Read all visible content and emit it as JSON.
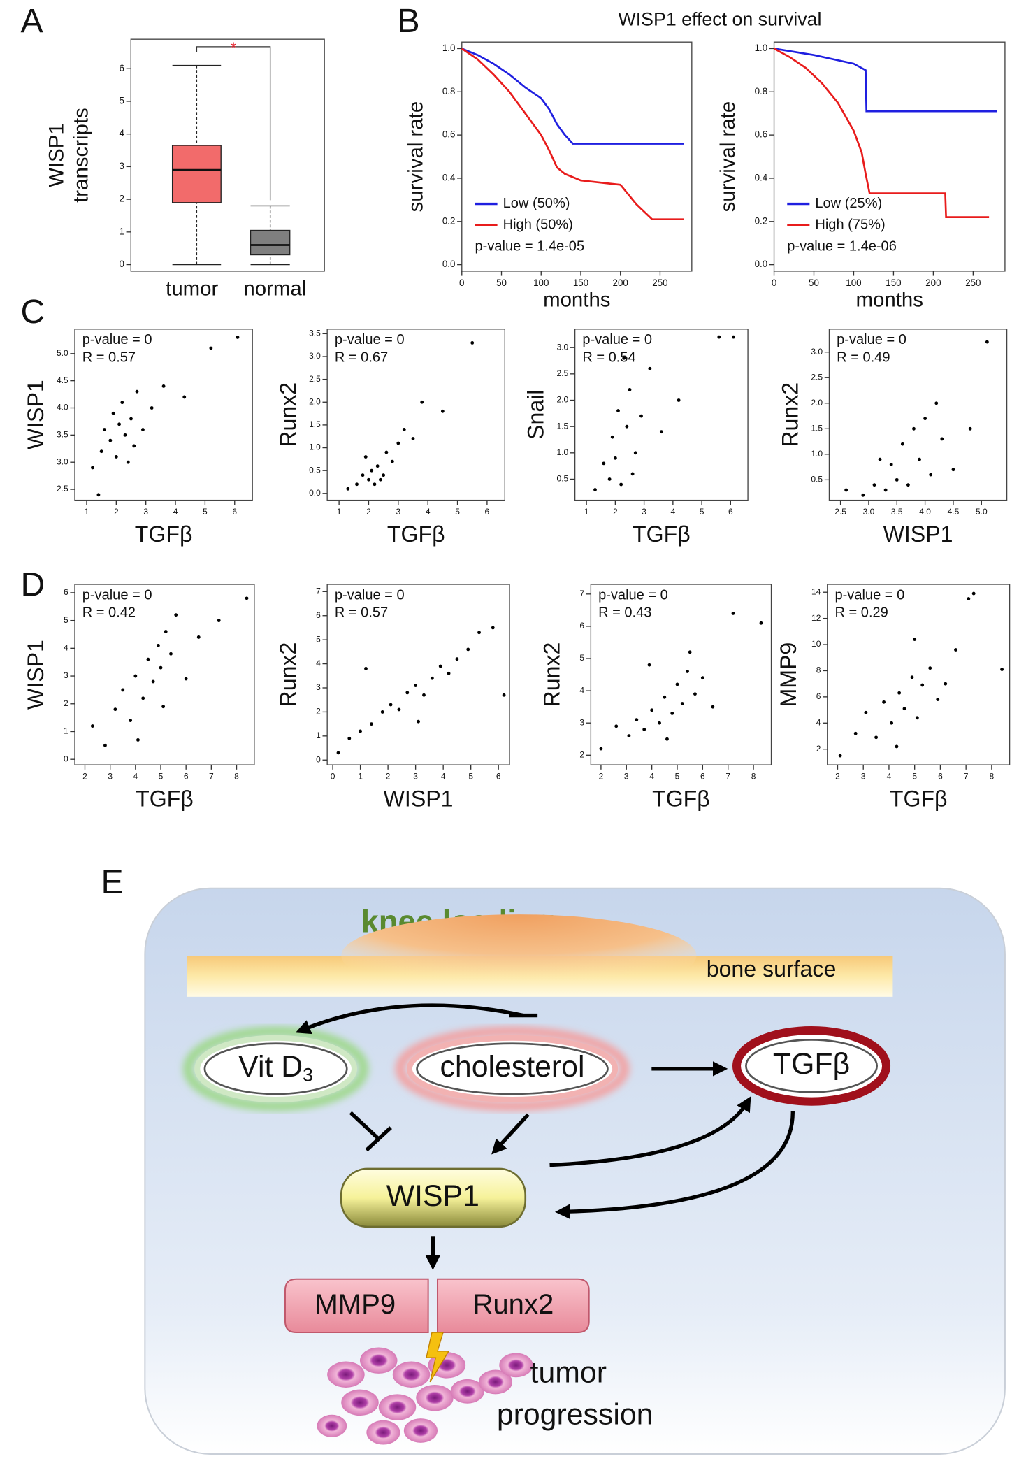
{
  "panel_labels": [
    "A",
    "B",
    "C",
    "D",
    "E"
  ],
  "chart_data": [
    {
      "type": "box",
      "ylabel": [
        "WISP1",
        "transcripts"
      ],
      "categories": [
        "tumor",
        "normal"
      ],
      "boxes": [
        {
          "whislo": 0,
          "q1": 1.9,
          "med": 2.9,
          "q3": 3.65,
          "whishi": 6.1
        },
        {
          "whislo": 0,
          "q1": 0.3,
          "med": 0.6,
          "q3": 1.05,
          "whishi": 1.8
        }
      ],
      "colors": [
        "#f26b6b",
        "#7f7f7f"
      ],
      "significance": "*",
      "significance_color": "#e8202a",
      "ylim": [
        -0.2,
        6.9
      ],
      "yticks": [
        0,
        1,
        2,
        3,
        4,
        5,
        6
      ]
    },
    {
      "type": "line",
      "title": "WISP1 effect on survival",
      "xlabel": "months",
      "ylabel": "survival rate",
      "annotation": "p-value = 1.4e-05",
      "xlim": [
        0,
        290
      ],
      "xticks": [
        0,
        50,
        100,
        150,
        200,
        250
      ],
      "ylim": [
        -0.03,
        1.03
      ],
      "yticks": [
        {
          "value": 0,
          "label": "0.0"
        },
        0.2,
        0.4,
        0.6,
        0.8,
        {
          "value": 1,
          "label": "1.0"
        }
      ],
      "series": [
        {
          "name": "Low (50%)",
          "color": "#1f1fe0",
          "x": [
            0,
            20,
            40,
            60,
            80,
            100,
            110,
            120,
            130,
            140,
            150,
            280
          ],
          "values": [
            1,
            0.97,
            0.93,
            0.88,
            0.82,
            0.77,
            0.72,
            0.65,
            0.6,
            0.56,
            0.56,
            0.56
          ]
        },
        {
          "name": "High (50%)",
          "color": "#e81c1c",
          "x": [
            0,
            20,
            40,
            60,
            80,
            100,
            110,
            120,
            130,
            150,
            200,
            220,
            240,
            280
          ],
          "values": [
            1,
            0.95,
            0.88,
            0.8,
            0.7,
            0.6,
            0.53,
            0.45,
            0.42,
            0.39,
            0.37,
            0.28,
            0.21,
            0.21
          ]
        }
      ]
    },
    {
      "type": "line",
      "xlabel": "months",
      "ylabel": "survival rate",
      "annotation": "p-value = 1.4e-06",
      "xlim": [
        0,
        290
      ],
      "xticks": [
        0,
        50,
        100,
        150,
        200,
        250
      ],
      "ylim": [
        -0.03,
        1.03
      ],
      "yticks": [
        {
          "value": 0,
          "label": "0.0"
        },
        0.2,
        0.4,
        0.6,
        0.8,
        {
          "value": 1,
          "label": "1.0"
        }
      ],
      "series": [
        {
          "name": "Low (25%)",
          "color": "#1f1fe0",
          "x": [
            0,
            50,
            100,
            115,
            116,
            280
          ],
          "values": [
            1,
            0.97,
            0.93,
            0.9,
            0.71,
            0.71
          ]
        },
        {
          "name": "High (75%)",
          "color": "#e81c1c",
          "x": [
            0,
            20,
            40,
            60,
            80,
            100,
            110,
            115,
            120,
            150,
            200,
            215,
            216,
            270
          ],
          "values": [
            1,
            0.96,
            0.91,
            0.84,
            0.75,
            0.62,
            0.52,
            0.42,
            0.33,
            0.33,
            0.33,
            0.33,
            0.22,
            0.22
          ]
        }
      ]
    },
    {
      "type": "scatter",
      "xlabel": "TGFβ",
      "ylabel": "WISP1",
      "annotations": [
        "p-value = 0",
        "R = 0.57"
      ],
      "xlim": [
        0.6,
        6.6
      ],
      "xticks": [
        1,
        2,
        3,
        4,
        5,
        6
      ],
      "ylim": [
        2.3,
        5.45
      ],
      "yticks": [
        2.5,
        {
          "value": 3,
          "label": "3.0"
        },
        3.5,
        {
          "value": 4,
          "label": "4.0"
        },
        4.5,
        {
          "value": 5,
          "label": "5.0"
        }
      ],
      "x": [
        1.2,
        1.5,
        1.6,
        1.8,
        1.9,
        2.0,
        2.1,
        2.2,
        2.3,
        2.4,
        2.5,
        2.7,
        2.9,
        3.2,
        3.6,
        4.3,
        5.2,
        6.1,
        1.4,
        2.6
      ],
      "values": [
        2.9,
        3.2,
        3.6,
        3.4,
        3.9,
        3.1,
        3.7,
        4.1,
        3.5,
        3.0,
        3.8,
        4.3,
        3.6,
        4.0,
        4.4,
        4.2,
        5.1,
        5.3,
        2.4,
        3.3
      ]
    },
    {
      "type": "scatter",
      "xlabel": "TGFβ",
      "ylabel": "Runx2",
      "annotations": [
        "p-value = 0",
        "R = 0.67"
      ],
      "xlim": [
        0.6,
        6.6
      ],
      "xticks": [
        1,
        2,
        3,
        4,
        5,
        6
      ],
      "ylim": [
        -0.15,
        3.6
      ],
      "yticks": [
        {
          "value": 0,
          "label": "0.0"
        },
        0.5,
        {
          "value": 1,
          "label": "1.0"
        },
        1.5,
        {
          "value": 2,
          "label": "2.0"
        },
        2.5,
        {
          "value": 3,
          "label": "3.0"
        },
        3.5
      ],
      "x": [
        1.3,
        1.6,
        1.8,
        2.0,
        2.1,
        2.2,
        2.3,
        2.5,
        2.6,
        2.8,
        3.0,
        3.2,
        3.5,
        3.8,
        4.5,
        5.5,
        1.9,
        2.4
      ],
      "values": [
        0.1,
        0.2,
        0.4,
        0.3,
        0.5,
        0.2,
        0.6,
        0.4,
        0.9,
        0.7,
        1.1,
        1.4,
        1.2,
        2.0,
        1.8,
        3.3,
        0.8,
        0.3
      ]
    },
    {
      "type": "scatter",
      "xlabel": "TGFβ",
      "ylabel": "Snail",
      "annotations": [
        "p-value = 0",
        "R = 0.54"
      ],
      "xlim": [
        0.6,
        6.6
      ],
      "xticks": [
        1,
        2,
        3,
        4,
        5,
        6
      ],
      "ylim": [
        0.1,
        3.35
      ],
      "yticks": [
        0.5,
        {
          "value": 1,
          "label": "1.0"
        },
        1.5,
        {
          "value": 2,
          "label": "2.0"
        },
        2.5,
        {
          "value": 3,
          "label": "3.0"
        }
      ],
      "x": [
        1.3,
        1.6,
        1.8,
        1.9,
        2.0,
        2.1,
        2.2,
        2.4,
        2.5,
        2.7,
        2.9,
        3.2,
        3.6,
        4.2,
        5.6,
        6.1,
        2.3,
        2.6
      ],
      "values": [
        0.3,
        0.8,
        0.5,
        1.3,
        0.9,
        1.8,
        0.4,
        1.5,
        2.2,
        1.0,
        1.7,
        2.6,
        1.4,
        2.0,
        3.2,
        3.2,
        2.8,
        0.6
      ]
    },
    {
      "type": "scatter",
      "xlabel": "WISP1",
      "ylabel": "Runx2",
      "annotations": [
        "p-value = 0",
        "R = 0.49"
      ],
      "xlim": [
        2.3,
        5.45
      ],
      "xticks": [
        2.5,
        {
          "value": 3,
          "label": "3.0"
        },
        3.5,
        {
          "value": 4,
          "label": "4.0"
        },
        4.5,
        {
          "value": 5,
          "label": "5.0"
        }
      ],
      "ylim": [
        0.1,
        3.45
      ],
      "yticks": [
        0.5,
        {
          "value": 1,
          "label": "1.0"
        },
        1.5,
        {
          "value": 2,
          "label": "2.0"
        },
        2.5,
        {
          "value": 3,
          "label": "3.0"
        }
      ],
      "x": [
        2.6,
        2.9,
        3.1,
        3.3,
        3.4,
        3.5,
        3.6,
        3.7,
        3.8,
        3.9,
        4.0,
        4.1,
        4.3,
        4.5,
        4.8,
        5.1,
        3.2,
        4.2
      ],
      "values": [
        0.3,
        0.2,
        0.4,
        0.3,
        0.8,
        0.5,
        1.2,
        0.4,
        1.5,
        0.9,
        1.7,
        0.6,
        1.3,
        0.7,
        1.5,
        3.2,
        0.9,
        2.0
      ]
    },
    {
      "type": "scatter",
      "xlabel": "TGFβ",
      "ylabel": "WISP1",
      "annotations": [
        "p-value = 0",
        "R = 0.42"
      ],
      "xlim": [
        1.6,
        8.7
      ],
      "xticks": [
        2,
        3,
        4,
        5,
        6,
        7,
        8
      ],
      "ylim": [
        -0.2,
        6.3
      ],
      "yticks": [
        0,
        1,
        2,
        3,
        4,
        5,
        6
      ],
      "x": [
        2.3,
        2.8,
        3.2,
        3.5,
        3.8,
        4.0,
        4.3,
        4.5,
        4.7,
        4.9,
        5.0,
        5.2,
        5.4,
        5.6,
        6.0,
        6.5,
        7.3,
        8.4,
        4.1,
        5.1
      ],
      "values": [
        1.2,
        0.5,
        1.8,
        2.5,
        1.4,
        3.0,
        2.2,
        3.6,
        2.8,
        4.1,
        3.3,
        4.6,
        3.8,
        5.2,
        2.9,
        4.4,
        5.0,
        5.8,
        0.7,
        1.9
      ]
    },
    {
      "type": "scatter",
      "xlabel": "WISP1",
      "ylabel": "Runx2",
      "annotations": [
        "p-value = 0",
        "R = 0.57"
      ],
      "xlim": [
        -0.2,
        6.4
      ],
      "xticks": [
        0,
        1,
        2,
        3,
        4,
        5,
        6
      ],
      "ylim": [
        -0.2,
        7.3
      ],
      "yticks": [
        0,
        1,
        2,
        3,
        4,
        5,
        6,
        7
      ],
      "x": [
        0.2,
        0.6,
        1.0,
        1.4,
        1.8,
        2.1,
        2.4,
        2.7,
        3.0,
        3.3,
        3.6,
        3.9,
        4.2,
        4.5,
        4.9,
        5.3,
        5.8,
        6.2,
        1.2,
        3.1
      ],
      "values": [
        0.3,
        0.9,
        1.2,
        1.5,
        2.0,
        2.3,
        2.1,
        2.8,
        3.1,
        2.7,
        3.4,
        3.9,
        3.6,
        4.2,
        4.6,
        5.3,
        5.5,
        2.7,
        3.8,
        1.6
      ]
    },
    {
      "type": "scatter",
      "xlabel": "TGFβ",
      "ylabel": "Runx2",
      "annotations": [
        "p-value = 0",
        "R = 0.43"
      ],
      "xlim": [
        1.6,
        8.7
      ],
      "xticks": [
        2,
        3,
        4,
        5,
        6,
        7,
        8
      ],
      "ylim": [
        1.7,
        7.3
      ],
      "yticks": [
        2,
        3,
        4,
        5,
        6,
        7
      ],
      "x": [
        2.0,
        2.6,
        3.1,
        3.4,
        3.7,
        4.0,
        4.3,
        4.5,
        4.8,
        5.0,
        5.2,
        5.4,
        5.7,
        6.0,
        6.4,
        7.2,
        8.3,
        4.6,
        5.5,
        3.9
      ],
      "values": [
        2.2,
        2.9,
        2.6,
        3.1,
        2.8,
        3.4,
        3.0,
        3.8,
        3.3,
        4.2,
        3.6,
        4.6,
        3.9,
        4.4,
        3.5,
        6.4,
        6.1,
        2.5,
        5.2,
        4.8
      ]
    },
    {
      "type": "scatter",
      "xlabel": "TGFβ",
      "ylabel": "MMP9",
      "annotations": [
        "p-value = 0",
        "R = 0.29"
      ],
      "xlim": [
        1.6,
        8.7
      ],
      "xticks": [
        2,
        3,
        4,
        5,
        6,
        7,
        8
      ],
      "ylim": [
        0.8,
        14.6
      ],
      "yticks": [
        2,
        4,
        6,
        8,
        10,
        12,
        14
      ],
      "x": [
        2.1,
        2.7,
        3.1,
        3.5,
        3.8,
        4.1,
        4.4,
        4.6,
        4.9,
        5.1,
        5.3,
        5.6,
        5.9,
        6.2,
        6.6,
        7.1,
        7.3,
        8.4,
        4.3,
        5.0
      ],
      "values": [
        1.5,
        3.2,
        4.8,
        2.9,
        5.6,
        4.0,
        6.3,
        5.1,
        7.5,
        4.4,
        6.9,
        8.2,
        5.8,
        7.0,
        9.6,
        13.5,
        13.9,
        8.1,
        2.2,
        10.4
      ]
    }
  ],
  "diagram": {
    "knee_loading": "knee loading",
    "bone_surface": "bone surface",
    "nodes": [
      {
        "label": "Vit D",
        "subscript": "3"
      },
      {
        "label": "cholesterol"
      },
      {
        "label": "TGFβ"
      },
      {
        "label": "WISP1"
      },
      {
        "label": "MMP9"
      },
      {
        "label": "Runx2"
      }
    ],
    "outcome": [
      "tumor",
      "progression"
    ]
  }
}
